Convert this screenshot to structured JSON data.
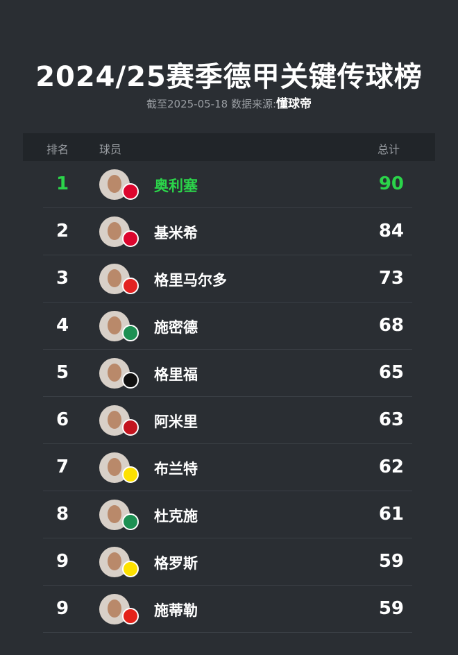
{
  "title": "2024/25赛季德甲关键传球榜",
  "subtitle": "截至2025-05-18 数据来源:",
  "source": "懂球帝",
  "headers": {
    "rank": "排名",
    "player": "球员",
    "total": "总计"
  },
  "highlight_color": "#2bd44a",
  "rows": [
    {
      "rank": "1",
      "name": "奥利塞",
      "total": "90",
      "club_color": "#dc052d"
    },
    {
      "rank": "2",
      "name": "基米希",
      "total": "84",
      "club_color": "#dc052d"
    },
    {
      "rank": "3",
      "name": "格里马尔多",
      "total": "73",
      "club_color": "#e32221"
    },
    {
      "rank": "4",
      "name": "施密德",
      "total": "68",
      "club_color": "#1d9053"
    },
    {
      "rank": "5",
      "name": "格里福",
      "total": "65",
      "club_color": "#111111"
    },
    {
      "rank": "6",
      "name": "阿米里",
      "total": "63",
      "club_color": "#c3141e"
    },
    {
      "rank": "7",
      "name": "布兰特",
      "total": "62",
      "club_color": "#fde100"
    },
    {
      "rank": "8",
      "name": "杜克施",
      "total": "61",
      "club_color": "#1d9053"
    },
    {
      "rank": "9",
      "name": "格罗斯",
      "total": "59",
      "club_color": "#fde100"
    },
    {
      "rank": "9",
      "name": "施蒂勒",
      "total": "59",
      "club_color": "#e32219"
    }
  ]
}
